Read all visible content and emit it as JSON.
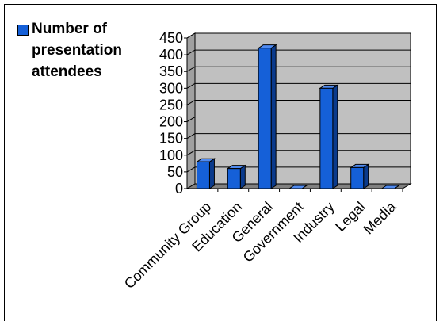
{
  "chart_data": {
    "type": "bar",
    "categories": [
      "Community Group",
      "Education",
      "General",
      "Government",
      "Industry",
      "Legal",
      "Media"
    ],
    "series": [
      {
        "name": "Number of presentation attendees",
        "values": [
          80,
          60,
          420,
          0,
          300,
          63,
          0
        ]
      }
    ],
    "ylim": [
      0,
      450
    ],
    "yticks": [
      0,
      50,
      100,
      150,
      200,
      250,
      300,
      350,
      400,
      450
    ],
    "xlabel": "",
    "ylabel": "",
    "grid": true,
    "legend_position": "top-left",
    "colors": {
      "bar_front": "#1560d8",
      "bar_side": "#0a3a8c",
      "bar_top": "#4f8af0",
      "plot_back": "#c0c0c0",
      "plot_floor": "#808080"
    }
  }
}
